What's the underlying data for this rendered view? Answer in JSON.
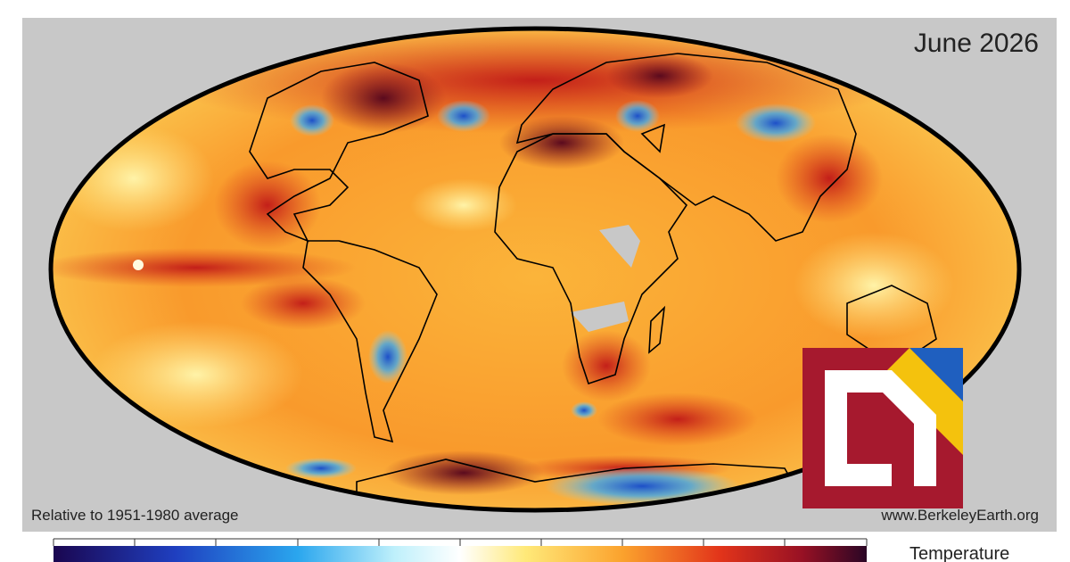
{
  "header": {
    "title": "June 2026"
  },
  "footer": {
    "baseline_note": "Relative to 1951-1980 average",
    "source": "www.BerkeleyEarth.org"
  },
  "legend": {
    "title": "Temperature"
  }
}
